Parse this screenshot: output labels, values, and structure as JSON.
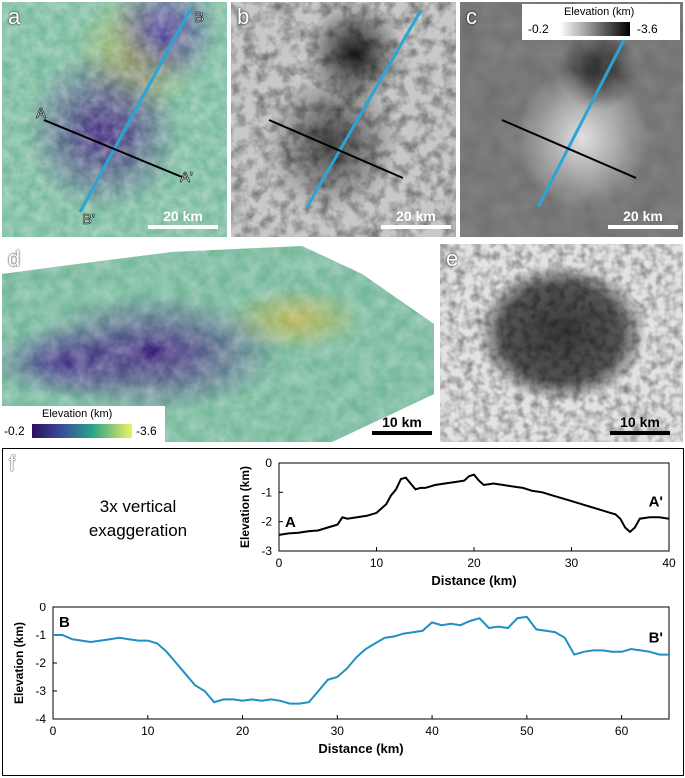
{
  "panels": {
    "a": {
      "label": "a",
      "point_labels": {
        "B": "B",
        "A": "A",
        "A_prime": "A'",
        "B_prime": "B'"
      },
      "scale_bar": "20 km"
    },
    "b": {
      "label": "b",
      "scale_bar": "20 km"
    },
    "c": {
      "label": "c",
      "legend_title": "Elevation (km)",
      "legend_min": "-0.2",
      "legend_max": "-3.6",
      "scale_bar": "20 km"
    },
    "d": {
      "label": "d",
      "legend_title": "Elevation (km)",
      "legend_min": "-0.2",
      "legend_max": "-3.6",
      "scale_bar": "10 km"
    },
    "e": {
      "label": "e",
      "scale_bar": "10 km"
    },
    "f": {
      "label": "f",
      "note_line1": "3x vertical",
      "note_line2": "exaggeration"
    }
  },
  "colors": {
    "profile_AA": "#000000",
    "profile_BB": "#1f8fc4",
    "transect_blue": "#2aa5d8",
    "transect_black": "#000000"
  },
  "chart_data": [
    {
      "type": "line",
      "name": "A-A' profile",
      "xlabel": "Distance (km)",
      "ylabel": "Elevation (km)",
      "xlim": [
        0,
        40
      ],
      "ylim": [
        -3,
        0
      ],
      "xticks": [
        0,
        10,
        20,
        30,
        40
      ],
      "yticks": [
        0,
        -1,
        -2,
        -3
      ],
      "start_label": "A",
      "end_label": "A'",
      "x": [
        0,
        1,
        2,
        3,
        4,
        5,
        6,
        6.5,
        7,
        8,
        9,
        10,
        11,
        11.5,
        12,
        12.5,
        13,
        13.5,
        14,
        14.5,
        15,
        16,
        17,
        18,
        19,
        19.5,
        20,
        20.5,
        21,
        22,
        23,
        24,
        25,
        26,
        27,
        28,
        29,
        30,
        31,
        32,
        33,
        34,
        34.5,
        35,
        35.5,
        36,
        36.5,
        37,
        38,
        39,
        40
      ],
      "y": [
        -2.45,
        -2.4,
        -2.38,
        -2.33,
        -2.3,
        -2.2,
        -2.1,
        -1.85,
        -1.9,
        -1.85,
        -1.8,
        -1.7,
        -1.4,
        -1.1,
        -0.9,
        -0.55,
        -0.5,
        -0.7,
        -0.9,
        -0.85,
        -0.85,
        -0.75,
        -0.7,
        -0.65,
        -0.6,
        -0.45,
        -0.4,
        -0.6,
        -0.75,
        -0.7,
        -0.75,
        -0.8,
        -0.85,
        -0.95,
        -1.0,
        -1.1,
        -1.2,
        -1.3,
        -1.4,
        -1.5,
        -1.6,
        -1.7,
        -1.75,
        -1.9,
        -2.2,
        -2.35,
        -2.2,
        -1.9,
        -1.85,
        -1.85,
        -1.9
      ]
    },
    {
      "type": "line",
      "name": "B-B' profile",
      "xlabel": "Distance (km)",
      "ylabel": "Elevation (km)",
      "xlim": [
        0,
        65
      ],
      "ylim": [
        -4,
        0
      ],
      "xticks": [
        0,
        10,
        20,
        30,
        40,
        50,
        60
      ],
      "yticks": [
        0,
        -1,
        -2,
        -3,
        -4
      ],
      "start_label": "B",
      "end_label": "B'",
      "x": [
        0,
        1,
        2,
        3,
        4,
        5,
        6,
        7,
        8,
        9,
        10,
        11,
        12,
        13,
        14,
        15,
        16,
        17,
        18,
        19,
        20,
        21,
        22,
        23,
        24,
        25,
        26,
        27,
        28,
        29,
        30,
        31,
        32,
        33,
        34,
        35,
        36,
        37,
        38,
        39,
        40,
        41,
        42,
        43,
        44,
        45,
        46,
        47,
        48,
        49,
        50,
        51,
        52,
        53,
        54,
        55,
        56,
        57,
        58,
        59,
        60,
        61,
        62,
        63,
        64,
        65
      ],
      "y": [
        -1.0,
        -1.0,
        -1.15,
        -1.2,
        -1.25,
        -1.2,
        -1.15,
        -1.1,
        -1.15,
        -1.2,
        -1.2,
        -1.3,
        -1.6,
        -2.0,
        -2.4,
        -2.8,
        -3.0,
        -3.4,
        -3.3,
        -3.3,
        -3.35,
        -3.3,
        -3.35,
        -3.3,
        -3.35,
        -3.45,
        -3.45,
        -3.4,
        -3.0,
        -2.6,
        -2.5,
        -2.2,
        -1.8,
        -1.5,
        -1.3,
        -1.1,
        -1.05,
        -0.95,
        -0.9,
        -0.85,
        -0.55,
        -0.65,
        -0.6,
        -0.65,
        -0.5,
        -0.4,
        -0.75,
        -0.7,
        -0.75,
        -0.4,
        -0.35,
        -0.8,
        -0.85,
        -0.9,
        -1.1,
        -1.7,
        -1.6,
        -1.55,
        -1.55,
        -1.6,
        -1.6,
        -1.5,
        -1.55,
        -1.6,
        -1.7,
        -1.7
      ]
    }
  ]
}
